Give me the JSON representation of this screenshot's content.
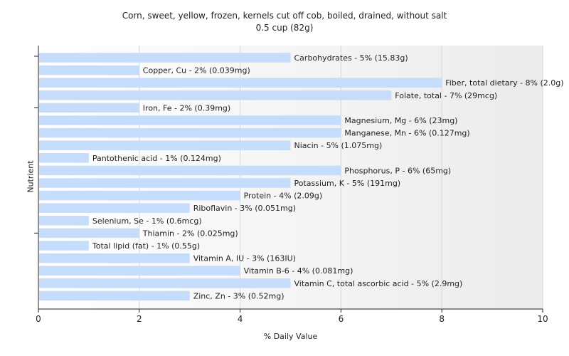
{
  "chart_data": {
    "type": "bar",
    "orientation": "horizontal",
    "title": "Corn, sweet, yellow, frozen, kernels cut off cob, boiled, drained, without salt",
    "subtitle": "0.5 cup (82g)",
    "xlabel": "% Daily Value",
    "ylabel": "Nutrient",
    "xlim": [
      0,
      10
    ],
    "xticks": [
      0,
      2,
      4,
      6,
      8,
      10
    ],
    "grid": true,
    "bar_color": "#c5ddfa",
    "categories": [
      "Carbohydrates - 5% (15.83g)",
      "Copper, Cu - 2% (0.039mg)",
      "Fiber, total dietary - 8% (2.0g)",
      "Folate, total - 7% (29mcg)",
      "Iron, Fe - 2% (0.39mg)",
      "Magnesium, Mg - 6% (23mg)",
      "Manganese, Mn - 6% (0.127mg)",
      "Niacin - 5% (1.075mg)",
      "Pantothenic acid - 1% (0.124mg)",
      "Phosphorus, P - 6% (65mg)",
      "Potassium, K - 5% (191mg)",
      "Protein - 4% (2.09g)",
      "Riboflavin - 3% (0.051mg)",
      "Selenium, Se - 1% (0.6mcg)",
      "Thiamin - 2% (0.025mg)",
      "Total lipid (fat) - 1% (0.55g)",
      "Vitamin A, IU - 3% (163IU)",
      "Vitamin B-6 - 4% (0.081mg)",
      "Vitamin C, total ascorbic acid - 5% (2.9mg)",
      "Zinc, Zn - 3% (0.52mg)"
    ],
    "values": [
      5,
      2,
      8,
      7,
      2,
      6,
      6,
      5,
      1,
      6,
      5,
      4,
      3,
      1,
      2,
      1,
      3,
      4,
      5,
      3
    ]
  }
}
